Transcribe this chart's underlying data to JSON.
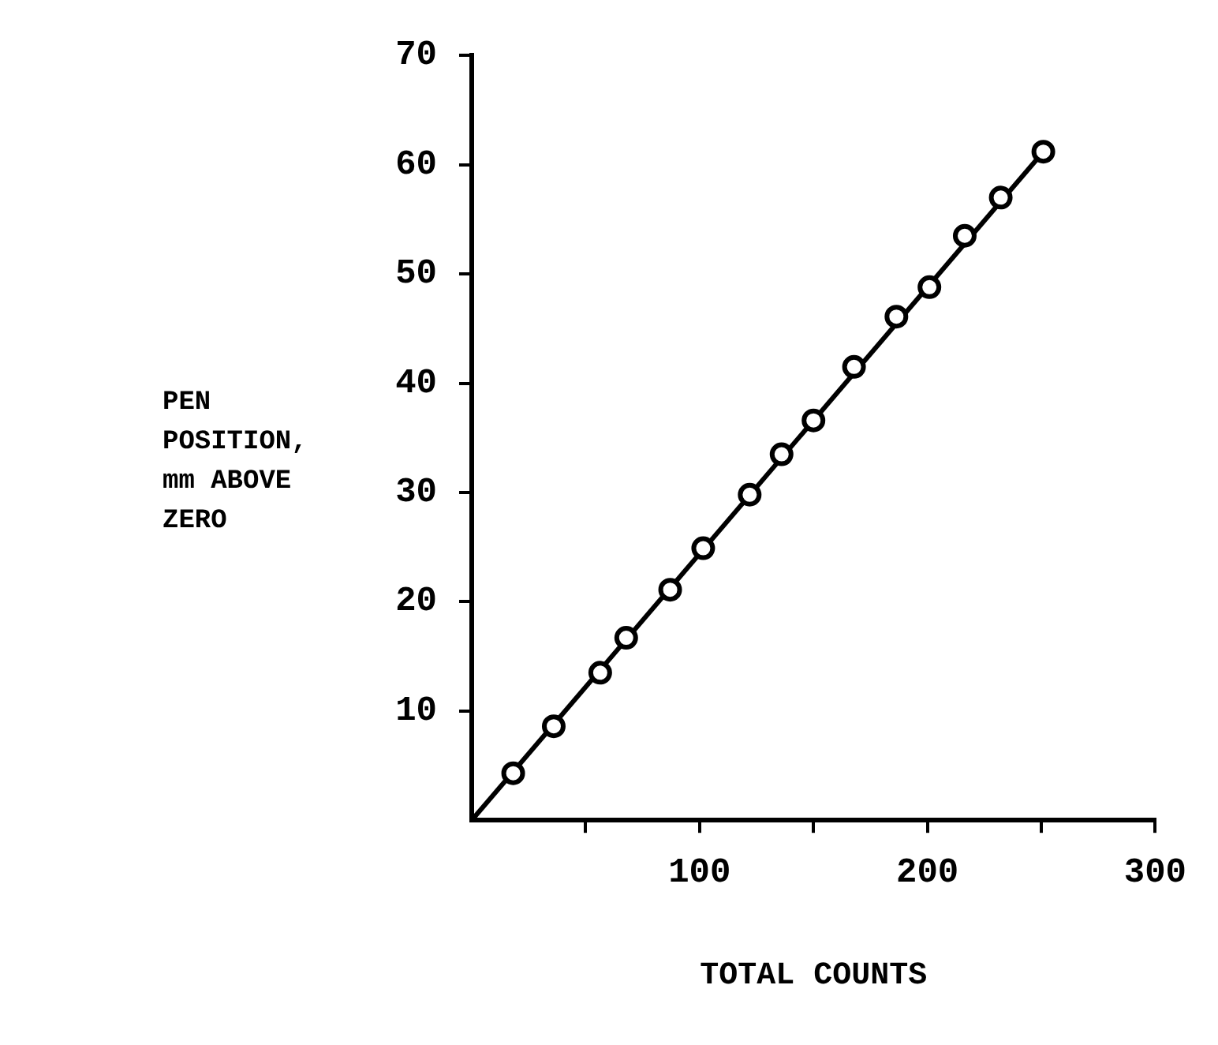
{
  "chart_data": {
    "type": "scatter",
    "xlabel": "TOTAL COUNTS",
    "ylabel": "PEN\nPOSITION,\nmm ABOVE\nZERO",
    "x": [
      18.2,
      36,
      56.4,
      67.8,
      87.1,
      101.6,
      122,
      136,
      150,
      167.8,
      186.4,
      200.9,
      216.4,
      232.2,
      250.9
    ],
    "series": [
      {
        "color": "#000000",
        "values": [
          4.3,
          8.6,
          13.5,
          16.7,
          21.1,
          24.9,
          29.8,
          33.5,
          36.6,
          41.5,
          46.1,
          48.8,
          53.5,
          57.0,
          61.2
        ],
        "marker": "circle"
      },
      {
        "type": "line",
        "color": "#000000",
        "x": [
          0,
          250.9
        ],
        "values": [
          0,
          61.2
        ],
        "marker": "none"
      }
    ],
    "xlim": [
      0,
      300
    ],
    "ylim": [
      0,
      70
    ],
    "xticks": [
      {
        "value": 50,
        "label": null
      },
      100,
      {
        "value": 150,
        "label": null
      },
      200,
      {
        "value": 250,
        "label": null
      },
      300
    ],
    "yticks": [
      10,
      20,
      30,
      40,
      50,
      60,
      70
    ],
    "grid": false,
    "legend": false
  }
}
